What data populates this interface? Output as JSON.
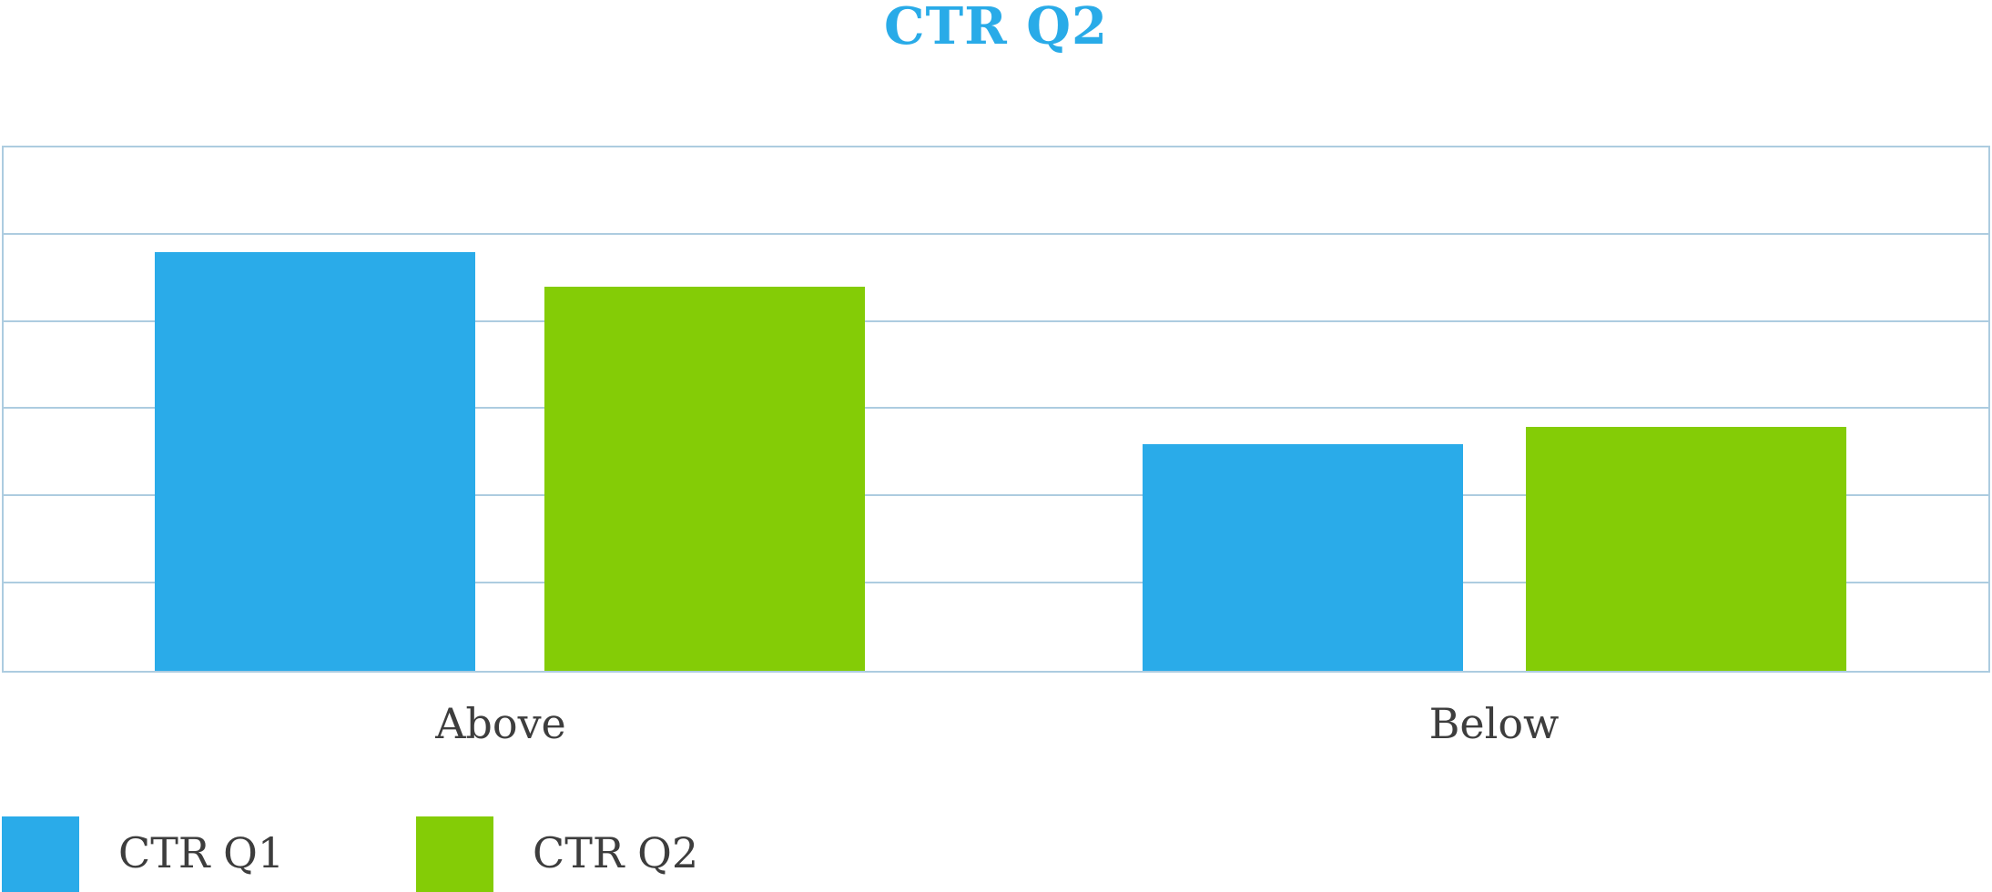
{
  "title": "CTR Q2",
  "chart_data": {
    "type": "bar",
    "title": "CTR Q2",
    "categories": [
      "Above",
      "Below"
    ],
    "series": [
      {
        "name": "CTR Q1",
        "color": "#2aabe9",
        "values": [
          4.8,
          2.6
        ]
      },
      {
        "name": "CTR Q2",
        "color": "#84cc06",
        "values": [
          4.4,
          2.8
        ]
      }
    ],
    "ylim": [
      0,
      6
    ],
    "gridline_interval": 1,
    "grid": true,
    "y_tick_labels_visible": false,
    "legend_position": "bottom-left",
    "xlabel": "",
    "ylabel": ""
  },
  "legend": {
    "items": [
      {
        "label": "CTR Q1",
        "color": "#2aabe9"
      },
      {
        "label": "CTR Q2",
        "color": "#84cc06"
      }
    ]
  },
  "colors": {
    "title": "#29abe8",
    "grid": "#adcce0",
    "axis_text": "#3d3d3d",
    "background": "#ffffff"
  }
}
